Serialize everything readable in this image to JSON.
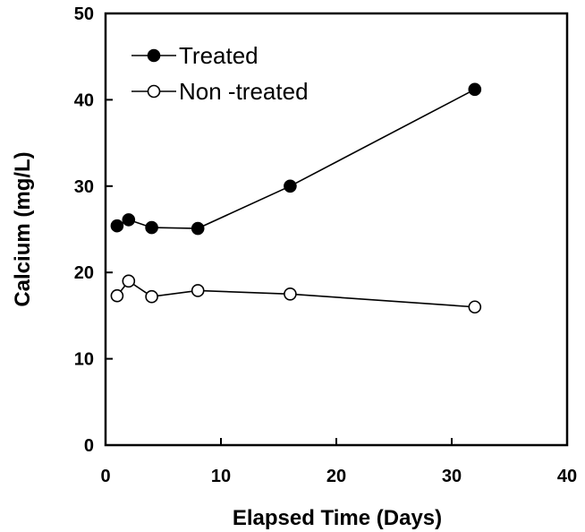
{
  "chart_data": {
    "type": "line",
    "title": "",
    "xlabel": "Elapsed Time (Days)",
    "ylabel": "Calcium (mg/L)",
    "xlim": [
      0,
      40
    ],
    "ylim": [
      0,
      50
    ],
    "x_ticks": [
      0,
      10,
      20,
      30,
      40
    ],
    "y_ticks": [
      0,
      10,
      20,
      30,
      40,
      50
    ],
    "x_tick_labels": [
      "0",
      "10",
      "20",
      "30",
      "40"
    ],
    "y_tick_labels": [
      "0",
      "10",
      "20",
      "30",
      "40",
      "50"
    ],
    "grid": false,
    "legend_position": "top-left",
    "series": [
      {
        "name": "Treated",
        "marker": "filled-circle",
        "color": "#000000",
        "x": [
          1,
          2,
          4,
          8,
          16,
          32
        ],
        "y": [
          25.4,
          26.1,
          25.2,
          25.1,
          30.0,
          41.2
        ]
      },
      {
        "name": "Non -treated",
        "marker": "open-circle",
        "color": "#000000",
        "x": [
          1,
          2,
          4,
          8,
          16,
          32
        ],
        "y": [
          17.3,
          19.0,
          17.2,
          17.9,
          17.5,
          16.0
        ]
      }
    ]
  }
}
